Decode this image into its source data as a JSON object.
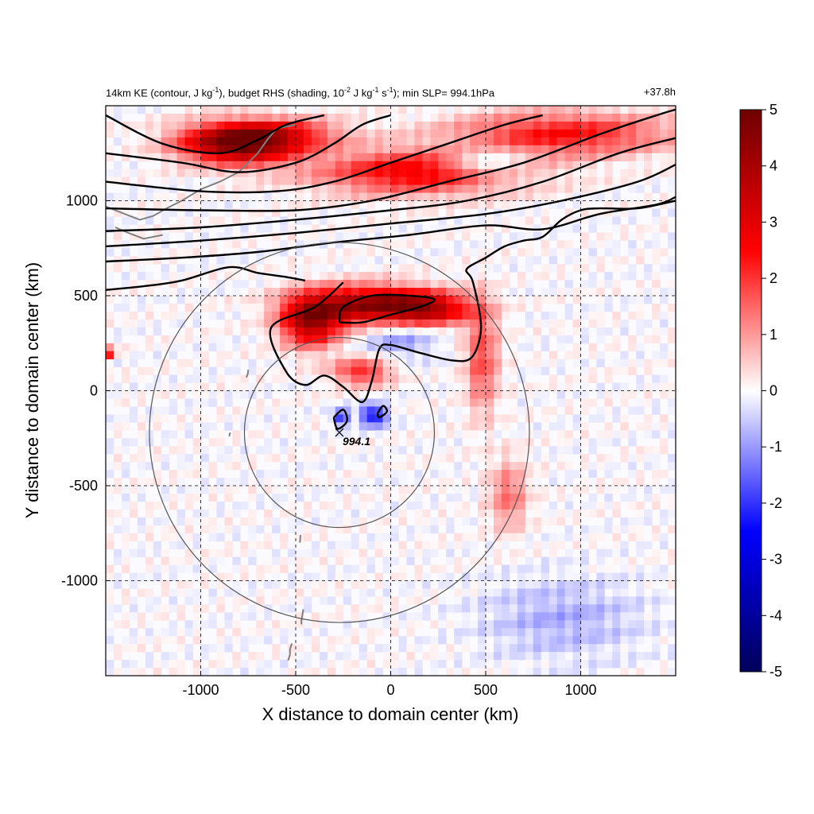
{
  "chart_data": {
    "type": "heatmap",
    "title": {
      "prefix": "14km KE (contour, J kg",
      "exp1": "-1",
      "mid1": "), budget RHS (shading, 10",
      "exp2": "-2",
      "mid2": " J kg",
      "exp3": "-1",
      "mid3": " s",
      "exp4": "-1",
      "suffix": "); min SLP= 994.1hPa"
    },
    "time_label": "+37.8h",
    "xlabel": "X distance to domain center (km)",
    "ylabel": "Y distance to domain center (km)",
    "xlim": [
      -1500,
      1500
    ],
    "ylim": [
      -1500,
      1500
    ],
    "x_ticks": [
      -1000,
      -500,
      0,
      500,
      1000
    ],
    "y_ticks": [
      -1000,
      -500,
      0,
      500,
      1000
    ],
    "grid": true,
    "colorbar": {
      "min": -5,
      "max": 5,
      "ticks": [
        5,
        4,
        3,
        2,
        1,
        0,
        -1,
        -2,
        -3,
        -4,
        -5
      ],
      "colormap": [
        "#00005a",
        "#0000ff",
        "#ffffff",
        "#ff0000",
        "#6e0000"
      ]
    },
    "center_marker": {
      "x": -270,
      "y": -220,
      "label": "994.1"
    },
    "rings_radius_km": [
      500,
      1000
    ],
    "positive_bands": [
      {
        "x": -800,
        "y": 1290,
        "sx": 210,
        "sy": 70,
        "amp": 4.2
      },
      {
        "x": -650,
        "y": 1350,
        "sx": 260,
        "sy": 60,
        "amp": 2.5
      },
      {
        "x": 150,
        "y": 1150,
        "sx": 380,
        "sy": 80,
        "amp": 2.8
      },
      {
        "x": 900,
        "y": 1350,
        "sx": 400,
        "sy": 80,
        "amp": 2.4
      },
      {
        "x": -120,
        "y": 450,
        "sx": 240,
        "sy": 70,
        "amp": 4.2
      },
      {
        "x": -420,
        "y": 360,
        "sx": 110,
        "sy": 90,
        "amp": 3.8
      },
      {
        "x": 200,
        "y": 430,
        "sx": 160,
        "sy": 60,
        "amp": 3.0
      },
      {
        "x": 480,
        "y": 170,
        "sx": 60,
        "sy": 200,
        "amp": 1.8
      },
      {
        "x": -150,
        "y": 100,
        "sx": 110,
        "sy": 50,
        "amp": 2.2
      },
      {
        "x": -1470,
        "y": 200,
        "sx": 18,
        "sy": 18,
        "amp": 3.0
      },
      {
        "x": 620,
        "y": -550,
        "sx": 70,
        "sy": 130,
        "amp": 1.4
      }
    ],
    "negative_bands": [
      {
        "x": 500,
        "y": 1200,
        "sx": 160,
        "sy": 60,
        "amp": -1.6
      },
      {
        "x": -90,
        "y": -130,
        "sx": 50,
        "sy": 40,
        "amp": -2.6
      },
      {
        "x": 50,
        "y": 280,
        "sx": 140,
        "sy": 80,
        "amp": -1.0
      },
      {
        "x": -260,
        "y": -140,
        "sx": 30,
        "sy": 30,
        "amp": -2.2
      },
      {
        "x": 900,
        "y": -1200,
        "sx": 300,
        "sy": 150,
        "amp": -0.8
      }
    ],
    "ke_contours": [
      [
        [
          -1500,
          1450
        ],
        [
          -1200,
          1300
        ],
        [
          -900,
          1250
        ],
        [
          -700,
          1320
        ],
        [
          -550,
          1400
        ],
        [
          -350,
          1450
        ]
      ],
      [
        [
          -1500,
          1250
        ],
        [
          -1100,
          1200
        ],
        [
          -800,
          1150
        ],
        [
          -500,
          1200
        ],
        [
          -300,
          1300
        ],
        [
          -150,
          1400
        ],
        [
          0,
          1450
        ]
      ],
      [
        [
          -1500,
          1100
        ],
        [
          -1000,
          1050
        ],
        [
          -600,
          1050
        ],
        [
          -300,
          1100
        ],
        [
          0,
          1200
        ],
        [
          300,
          1300
        ],
        [
          600,
          1400
        ],
        [
          800,
          1450
        ]
      ],
      [
        [
          -1500,
          960
        ],
        [
          -1000,
          950
        ],
        [
          -500,
          950
        ],
        [
          -100,
          1000
        ],
        [
          300,
          1100
        ],
        [
          700,
          1200
        ],
        [
          1100,
          1350
        ],
        [
          1400,
          1450
        ],
        [
          1500,
          1480
        ]
      ],
      [
        [
          -1500,
          840
        ],
        [
          -1000,
          860
        ],
        [
          -500,
          900
        ],
        [
          0,
          950
        ],
        [
          400,
          1000
        ],
        [
          800,
          1100
        ],
        [
          1200,
          1250
        ],
        [
          1500,
          1330
        ]
      ],
      [
        [
          -1500,
          760
        ],
        [
          -1000,
          790
        ],
        [
          -500,
          830
        ],
        [
          0,
          880
        ],
        [
          500,
          930
        ],
        [
          900,
          1000
        ],
        [
          1300,
          1100
        ],
        [
          1500,
          1190
        ]
      ],
      [
        [
          -1500,
          680
        ],
        [
          -1100,
          700
        ],
        [
          -700,
          730
        ],
        [
          -300,
          780
        ],
        [
          100,
          820
        ],
        [
          500,
          870
        ],
        [
          800,
          850
        ],
        [
          1100,
          930
        ],
        [
          1400,
          980
        ],
        [
          1500,
          1020
        ]
      ],
      [
        [
          -1500,
          530
        ],
        [
          -1300,
          550
        ],
        [
          -1100,
          580
        ],
        [
          -850,
          650
        ],
        [
          -700,
          620
        ],
        [
          -560,
          600
        ],
        [
          -450,
          580
        ]
      ],
      [
        [
          -250,
          570
        ],
        [
          -400,
          440
        ],
        [
          -630,
          330
        ],
        [
          -550,
          100
        ],
        [
          -450,
          30
        ],
        [
          -350,
          80
        ],
        [
          -250,
          20
        ],
        [
          -150,
          -60
        ],
        [
          -100,
          50
        ],
        [
          -60,
          220
        ],
        [
          0,
          240
        ],
        [
          150,
          200
        ],
        [
          320,
          160
        ],
        [
          420,
          170
        ],
        [
          470,
          280
        ],
        [
          470,
          400
        ],
        [
          430,
          580
        ],
        [
          400,
          640
        ],
        [
          500,
          700
        ],
        [
          600,
          760
        ],
        [
          700,
          790
        ],
        [
          800,
          810
        ],
        [
          900,
          900
        ],
        [
          1000,
          950
        ],
        [
          1100,
          960
        ],
        [
          1300,
          960
        ],
        [
          1500,
          1000
        ]
      ],
      [
        [
          -270,
          360
        ],
        [
          -250,
          440
        ],
        [
          -100,
          500
        ],
        [
          100,
          500
        ],
        [
          230,
          480
        ],
        [
          150,
          440
        ],
        [
          0,
          400
        ],
        [
          -150,
          360
        ],
        [
          -270,
          360
        ]
      ],
      [
        [
          -300,
          -140
        ],
        [
          -250,
          -100
        ],
        [
          -230,
          -160
        ],
        [
          -280,
          -200
        ],
        [
          -300,
          -140
        ]
      ],
      [
        [
          -70,
          -120
        ],
        [
          -40,
          -80
        ],
        [
          -20,
          -110
        ],
        [
          -60,
          -140
        ],
        [
          -70,
          -120
        ]
      ]
    ],
    "coast_segments": [
      [
        [
          -1500,
          970
        ],
        [
          -1400,
          930
        ],
        [
          -1320,
          900
        ],
        [
          -1250,
          920
        ],
        [
          -1180,
          960
        ],
        [
          -1100,
          1000
        ],
        [
          -1000,
          1060
        ],
        [
          -900,
          1100
        ],
        [
          -800,
          1150
        ],
        [
          -700,
          1250
        ],
        [
          -650,
          1320
        ],
        [
          -600,
          1380
        ],
        [
          -500,
          1400
        ]
      ],
      [
        [
          -1450,
          860
        ],
        [
          -1380,
          830
        ],
        [
          -1300,
          800
        ],
        [
          -1200,
          820
        ]
      ],
      [
        [
          -750,
          110
        ],
        [
          -752,
          90
        ],
        [
          -760,
          70
        ]
      ],
      [
        [
          -845,
          -220
        ],
        [
          -850,
          -240
        ]
      ],
      [
        [
          -475,
          -760
        ],
        [
          -478,
          -800
        ]
      ],
      [
        [
          -460,
          -1150
        ],
        [
          -470,
          -1210
        ],
        [
          -470,
          -1230
        ]
      ],
      [
        [
          -520,
          -1330
        ],
        [
          -530,
          -1360
        ],
        [
          -530,
          -1390
        ],
        [
          -540,
          -1420
        ]
      ]
    ]
  }
}
